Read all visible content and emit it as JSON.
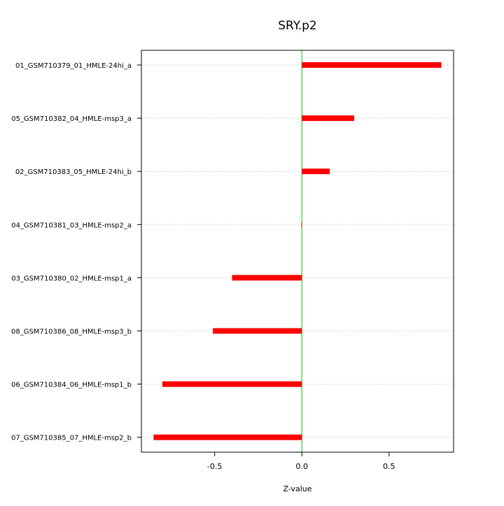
{
  "chart_data": {
    "type": "bar",
    "orientation": "horizontal",
    "title": "SRY.p2",
    "xlabel": "Z-value",
    "ylabel": "",
    "xlim": [
      -0.92,
      0.87
    ],
    "x_ticks": [
      -0.5,
      0.0,
      0.5
    ],
    "x_tick_labels": [
      "-0.5",
      "0.0",
      "0.5"
    ],
    "reference_line": 0.0,
    "grid": "horizontal dotted",
    "categories": [
      "01_GSM710379_01_HMLE-24hi_a",
      "05_GSM710382_04_HMLE-msp3_a",
      "02_GSM710383_05_HMLE-24hi_b",
      "04_GSM710381_03_HMLE-msp2_a",
      "03_GSM710380_02_HMLE-msp1_a",
      "08_GSM710386_08_HMLE-msp3_b",
      "06_GSM710384_06_HMLE-msp1_b",
      "07_GSM710385_07_HMLE-msp2_b"
    ],
    "values": [
      0.8,
      0.3,
      0.16,
      -0.003,
      -0.4,
      -0.51,
      -0.8,
      -0.85
    ]
  },
  "colors": {
    "bar": "#ff0000",
    "zero_line": "#00cc00",
    "grid": "#d3d3d3",
    "axis": "#000000"
  }
}
